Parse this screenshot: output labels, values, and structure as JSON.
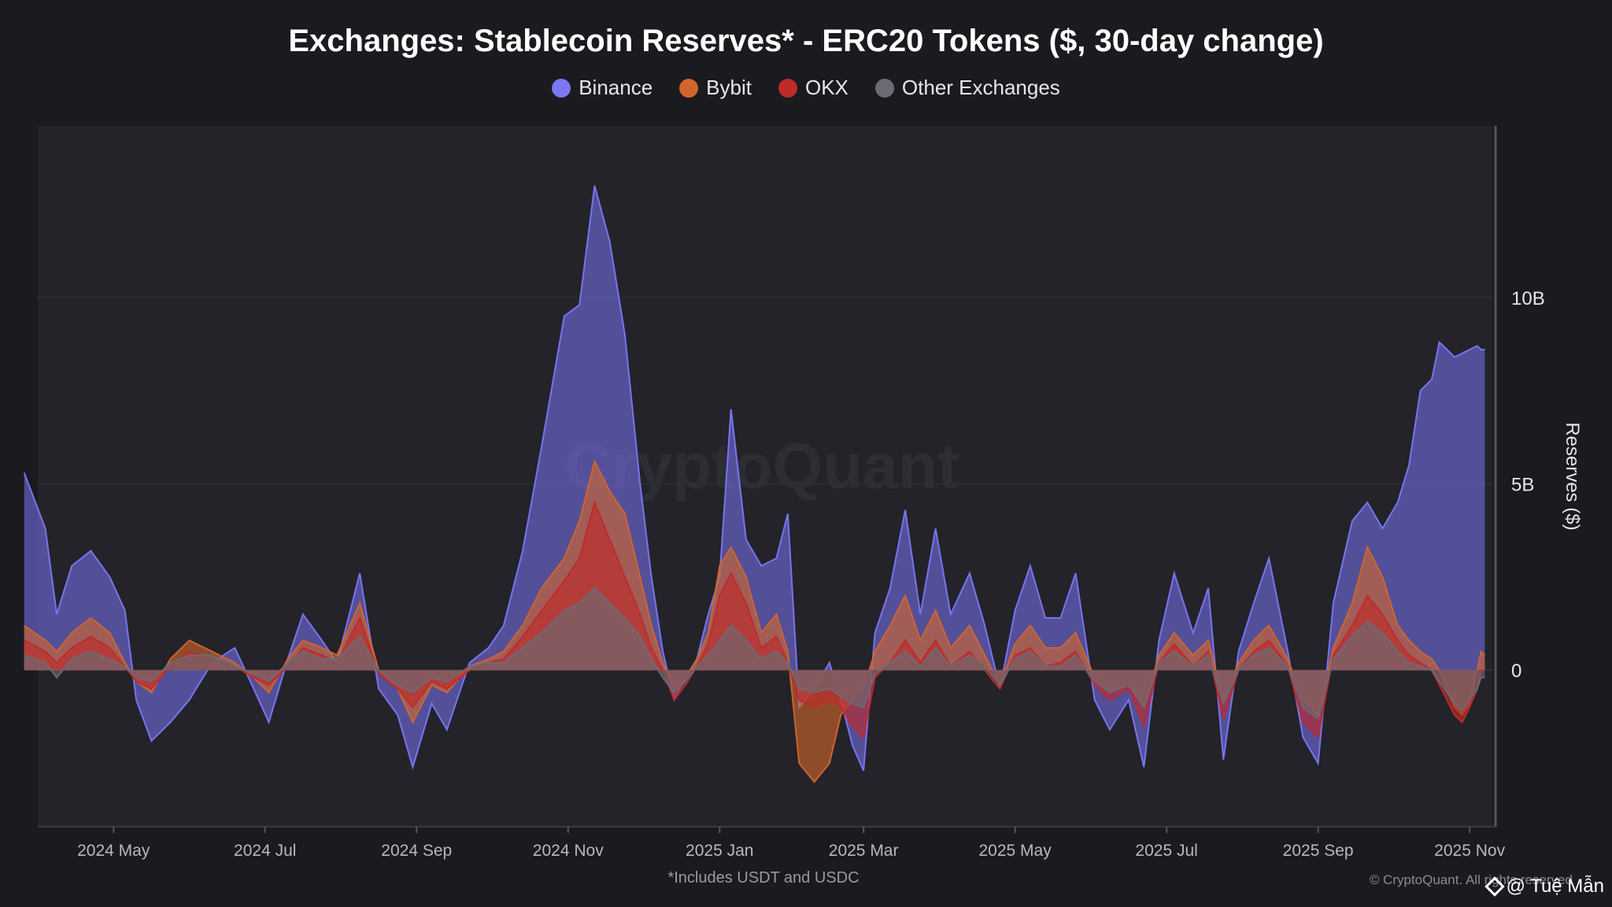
{
  "chart_data": {
    "type": "area",
    "title": "Exchanges: Stablecoin Reserves* - ERC20 Tokens ($, 30-day change)",
    "ylabel": "Reserves ($)",
    "ylim": [
      -4.2,
      14.6
    ],
    "yticks": [
      {
        "value": 0,
        "label": "0"
      },
      {
        "value": 5,
        "label": "5B"
      },
      {
        "value": 10,
        "label": "10B"
      }
    ],
    "x_range_months": [
      0,
      19.2
    ],
    "xticks": [
      {
        "m": 1,
        "label": "2024 May"
      },
      {
        "m": 3,
        "label": "2024 Jul"
      },
      {
        "m": 5,
        "label": "2024 Sep"
      },
      {
        "m": 7,
        "label": "2024 Nov"
      },
      {
        "m": 9,
        "label": "2025 Jan"
      },
      {
        "m": 10.9,
        "label": "2025 Mar"
      },
      {
        "m": 12.9,
        "label": "2025 May"
      },
      {
        "m": 14.9,
        "label": "2025 Jul"
      },
      {
        "m": 16.9,
        "label": "2025 Sep"
      },
      {
        "m": 18.9,
        "label": "2025 Nov"
      }
    ],
    "x": [
      -0.18,
      0.1,
      0.25,
      0.45,
      0.7,
      0.95,
      1.15,
      1.3,
      1.5,
      1.75,
      2.0,
      2.3,
      2.6,
      2.85,
      3.05,
      3.3,
      3.5,
      3.75,
      3.95,
      4.25,
      4.5,
      4.75,
      4.95,
      5.2,
      5.4,
      5.7,
      5.95,
      6.15,
      6.4,
      6.65,
      6.95,
      7.15,
      7.35,
      7.55,
      7.75,
      7.95,
      8.1,
      8.25,
      8.4,
      8.55,
      8.7,
      8.85,
      9.0,
      9.15,
      9.35,
      9.55,
      9.75,
      9.9,
      10.05,
      10.25,
      10.45,
      10.6,
      10.75,
      10.9,
      11.05,
      11.25,
      11.45,
      11.65,
      11.85,
      12.05,
      12.3,
      12.5,
      12.7,
      12.9,
      13.1,
      13.3,
      13.5,
      13.7,
      13.95,
      14.15,
      14.4,
      14.6,
      14.8,
      15.0,
      15.25,
      15.45,
      15.65,
      15.85,
      16.05,
      16.25,
      16.5,
      16.7,
      16.9,
      17.1,
      17.35,
      17.55,
      17.75,
      17.95,
      18.1,
      18.25,
      18.4,
      18.5,
      18.6,
      18.7,
      18.8,
      18.9,
      19.0,
      19.05,
      19.1
    ],
    "series": [
      {
        "name": "Binance",
        "color": "#7b77f5",
        "values": [
          5.3,
          3.8,
          1.5,
          2.8,
          3.2,
          2.5,
          1.6,
          -0.8,
          -1.9,
          -1.4,
          -0.8,
          0.2,
          0.6,
          -0.5,
          -1.4,
          0.3,
          1.5,
          0.8,
          0.2,
          2.6,
          -0.5,
          -1.2,
          -2.6,
          -0.9,
          -1.6,
          0.2,
          0.6,
          1.2,
          3.2,
          6.0,
          9.5,
          9.8,
          13.0,
          11.5,
          9.0,
          5.0,
          2.5,
          0.5,
          -0.8,
          -0.2,
          0.3,
          1.5,
          2.5,
          7.0,
          3.5,
          2.8,
          3.0,
          4.2,
          -1.0,
          -0.5,
          0.2,
          -0.8,
          -2.0,
          -2.7,
          1.0,
          2.2,
          4.3,
          1.5,
          3.8,
          1.5,
          2.6,
          1.2,
          -0.5,
          1.6,
          2.8,
          1.4,
          1.4,
          2.6,
          -0.8,
          -1.6,
          -0.8,
          -2.6,
          0.8,
          2.6,
          1.0,
          2.2,
          -2.4,
          0.5,
          1.8,
          3.0,
          0.5,
          -1.8,
          -2.5,
          1.8,
          4.0,
          4.5,
          3.8,
          4.5,
          5.5,
          7.5,
          7.8,
          8.8,
          8.6,
          8.4,
          8.5,
          8.6,
          8.7,
          8.6,
          8.6
        ]
      },
      {
        "name": "Bybit",
        "color": "#d2652d",
        "values": [
          1.2,
          0.8,
          0.5,
          1.0,
          1.4,
          1.0,
          0.2,
          -0.3,
          -0.6,
          0.3,
          0.8,
          0.5,
          0.2,
          -0.2,
          -0.6,
          0.3,
          0.8,
          0.6,
          0.4,
          1.8,
          0.0,
          -0.5,
          -1.4,
          -0.4,
          -0.6,
          0.1,
          0.3,
          0.5,
          1.2,
          2.2,
          3.0,
          4.0,
          5.6,
          4.8,
          4.2,
          2.5,
          1.2,
          0.2,
          -0.5,
          -0.2,
          0.3,
          1.0,
          2.8,
          3.3,
          2.5,
          1.0,
          1.5,
          0.5,
          -2.5,
          -3.0,
          -2.5,
          -1.2,
          -0.8,
          -0.5,
          0.5,
          1.2,
          2.0,
          0.8,
          1.6,
          0.6,
          1.2,
          0.4,
          -0.4,
          0.7,
          1.2,
          0.6,
          0.6,
          1.0,
          -0.2,
          -0.6,
          -0.3,
          -1.0,
          0.4,
          1.0,
          0.4,
          0.8,
          -0.8,
          0.2,
          0.8,
          1.2,
          0.3,
          -0.8,
          -1.2,
          0.6,
          1.8,
          3.3,
          2.5,
          1.2,
          0.8,
          0.5,
          0.3,
          0.0,
          -0.5,
          -1.0,
          -1.2,
          -0.9,
          0.0,
          0.5,
          0.4
        ]
      },
      {
        "name": "OKX",
        "color": "#c02a2a",
        "values": [
          0.8,
          0.5,
          0.2,
          0.6,
          0.9,
          0.6,
          0.1,
          -0.3,
          -0.5,
          0.1,
          0.5,
          0.3,
          0.1,
          -0.2,
          -0.4,
          0.1,
          0.6,
          0.4,
          0.2,
          1.4,
          -0.1,
          -0.5,
          -1.0,
          -0.3,
          -0.5,
          0.0,
          0.2,
          0.3,
          0.9,
          1.6,
          2.4,
          3.0,
          4.5,
          3.5,
          2.5,
          1.5,
          0.6,
          0.0,
          -0.8,
          -0.4,
          0.1,
          0.7,
          2.0,
          2.6,
          1.8,
          0.6,
          0.9,
          0.2,
          -0.8,
          -1.0,
          -0.8,
          -1.0,
          -1.5,
          -1.8,
          -0.2,
          0.2,
          0.8,
          0.2,
          0.8,
          0.1,
          0.5,
          0.0,
          -0.5,
          0.4,
          0.6,
          0.1,
          0.2,
          0.5,
          -0.4,
          -0.8,
          -0.5,
          -1.5,
          0.2,
          0.7,
          0.1,
          0.5,
          -1.3,
          0.0,
          0.5,
          0.8,
          0.1,
          -1.4,
          -1.8,
          0.4,
          1.2,
          2.0,
          1.5,
          0.8,
          0.4,
          0.2,
          0.0,
          -0.4,
          -0.8,
          -1.2,
          -1.4,
          -1.0,
          -0.5,
          0.0,
          0.0
        ]
      },
      {
        "name": "Other Exchanges",
        "color": "#6b6b75",
        "values": [
          0.4,
          0.2,
          -0.2,
          0.3,
          0.5,
          0.3,
          0.1,
          -0.2,
          -0.3,
          0.2,
          0.4,
          0.4,
          0.1,
          -0.1,
          -0.3,
          0.2,
          0.5,
          0.3,
          0.3,
          0.9,
          0.0,
          -0.4,
          -0.6,
          -0.2,
          -0.3,
          0.1,
          0.2,
          0.2,
          0.6,
          1.0,
          1.6,
          1.8,
          2.2,
          1.8,
          1.4,
          0.9,
          0.3,
          -0.2,
          -0.6,
          -0.3,
          0.1,
          0.4,
          0.8,
          1.2,
          0.8,
          0.3,
          0.5,
          0.2,
          -0.5,
          -0.6,
          -0.5,
          -0.7,
          -0.9,
          -1.0,
          -0.1,
          0.2,
          0.5,
          0.1,
          0.6,
          0.1,
          0.4,
          0.1,
          -0.4,
          0.3,
          0.5,
          0.1,
          0.1,
          0.4,
          -0.3,
          -0.6,
          -0.4,
          -1.0,
          0.2,
          0.5,
          0.1,
          0.4,
          -0.9,
          0.0,
          0.4,
          0.6,
          0.1,
          -1.0,
          -1.3,
          0.3,
          0.9,
          1.3,
          1.0,
          0.5,
          0.2,
          0.1,
          0.0,
          -0.3,
          -0.6,
          -0.9,
          -1.1,
          -0.8,
          -0.5,
          -0.2,
          -0.2
        ]
      }
    ],
    "watermark": "CryptoQuant",
    "footnote": "*Includes USDT and USDC"
  },
  "credits": {
    "copyright": "© CryptoQuant. All rights reserved",
    "user": "@ Tuệ Mẫn"
  }
}
